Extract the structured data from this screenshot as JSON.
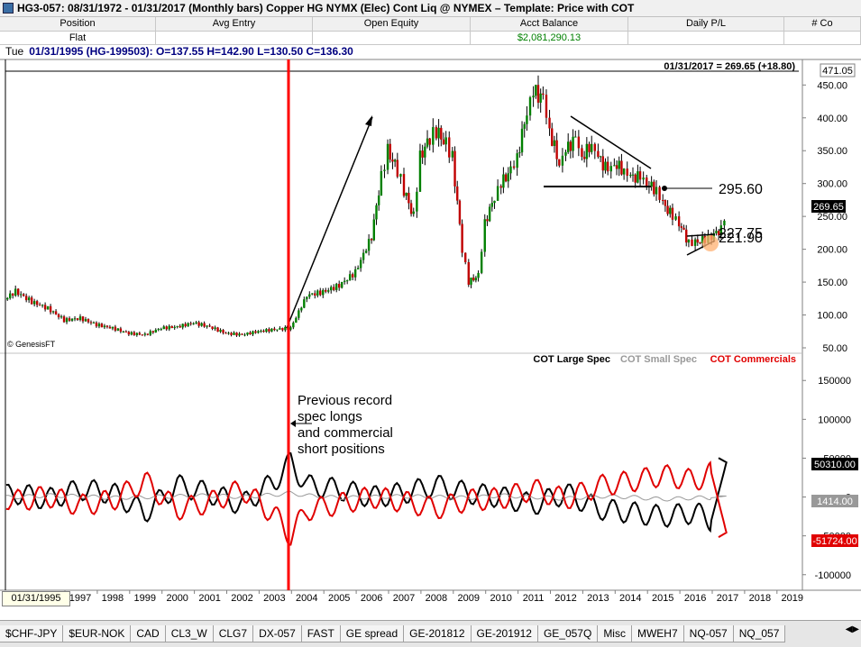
{
  "window": {
    "title": "HG3-057:  08/31/1972 - 01/31/2017  (Monthly bars)   Copper HG NYMX (Elec) Cont Liq @ NYMEX  –  Template: Price with COT"
  },
  "position_table": {
    "headers": [
      "Position",
      "Avg Entry",
      "Open Equity",
      "Acct Balance",
      "Daily P/L",
      "# Co"
    ],
    "row": [
      "Flat",
      "",
      "",
      "$2,081,290.13",
      "",
      ""
    ]
  },
  "quote_line": {
    "day": "Tue",
    "text": "01/31/1995 (HG-199503):  O=137.55  H=142.90  L=130.50  C=136.30"
  },
  "price_panel": {
    "header_text": "01/31/2017 = 269.65 (+18.80)",
    "top_box": "471.05",
    "last_price_box": "269.65",
    "watermark": "© GenesisFT",
    "annotations": {
      "level_1": "295.60",
      "level_2": "227.75",
      "level_3": "221.90"
    }
  },
  "cot_panel": {
    "legend": [
      {
        "name": "COT Large Spec",
        "color": "#000000"
      },
      {
        "name": "COT Small Spec",
        "color": "#999999"
      },
      {
        "name": "COT Commercials",
        "color": "#e00000"
      }
    ],
    "annotation": "Previous record spec longs and commercial short positions",
    "last_values": {
      "large": "50310.00",
      "small": "1414.00",
      "commercials": "-51724.00"
    }
  },
  "cursor_date": "01/31/1995",
  "tabs": [
    "$CHF-JPY",
    "$EUR-NOK",
    "CAD",
    "CL3_W",
    "CLG7",
    "DX-057",
    "FAST",
    "GE spread",
    "GE-201812",
    "GE-201912",
    "GE_057Q",
    "Misc",
    "MWEH7",
    "NQ-057",
    "NQ_057"
  ],
  "colors": {
    "price_bars": "#000000",
    "up_bar": "#008000",
    "down_bar": "#c00000",
    "cursor_line": "#ff0000",
    "highlight_circle": "#ffb070"
  },
  "chart_data": [
    {
      "type": "bar",
      "title": "",
      "bar_period": "monthly",
      "xlabel": "",
      "ylabel": "",
      "x_ticks": [
        "1997",
        "1998",
        "1999",
        "2000",
        "2001",
        "2002",
        "2003",
        "2004",
        "2005",
        "2006",
        "2007",
        "2008",
        "2009",
        "2010",
        "2011",
        "2012",
        "2013",
        "2014",
        "2015",
        "2016",
        "2017",
        "2018",
        "2019"
      ],
      "y_ticks": [
        "450.00",
        "400.00",
        "350.00",
        "300.00",
        "250.00",
        "200.00",
        "150.00",
        "100.00",
        "50.00"
      ],
      "ylim": [
        50,
        471
      ],
      "series": [
        {
          "name": "",
          "x": [
            1992.0,
            1992.5,
            1993.0,
            1993.5,
            1994.0,
            1994.5,
            1995.0,
            1995.5,
            1996.0,
            1996.5,
            1997.0,
            1997.5,
            1998.0,
            1998.5,
            1999.0,
            1999.5,
            2000.0,
            2000.5,
            2001.0,
            2001.5,
            2002.0,
            2002.5,
            2003.0,
            2003.5,
            2004.0,
            2004.5,
            2005.0,
            2005.5,
            2006.0,
            2006.3,
            2006.5,
            2006.8,
            2007.0,
            2007.3,
            2007.5,
            2007.8,
            2008.0,
            2008.3,
            2008.5,
            2008.8,
            2009.0,
            2009.3,
            2009.5,
            2009.8,
            2010.0,
            2010.3,
            2010.5,
            2010.8,
            2011.0,
            2011.3,
            2011.5,
            2011.8,
            2012.0,
            2012.3,
            2012.5,
            2012.8,
            2013.0,
            2013.3,
            2013.5,
            2013.8,
            2014.0,
            2014.3,
            2014.5,
            2014.8,
            2015.0,
            2015.3,
            2015.5,
            2015.8,
            2016.0,
            2016.3,
            2016.5,
            2016.8,
            2017.0
          ],
          "close": [
            135,
            128,
            120,
            105,
            110,
            118,
            136,
            120,
            110,
            92,
            95,
            85,
            80,
            72,
            70,
            80,
            82,
            88,
            82,
            72,
            70,
            75,
            78,
            80,
            130,
            135,
            145,
            165,
            220,
            310,
            350,
            320,
            290,
            250,
            340,
            370,
            380,
            360,
            340,
            200,
            150,
            160,
            240,
            280,
            300,
            320,
            340,
            410,
            440,
            430,
            380,
            330,
            350,
            370,
            340,
            360,
            340,
            320,
            330,
            320,
            310,
            310,
            300,
            290,
            270,
            250,
            240,
            210,
            210,
            215,
            220,
            230,
            269.65
          ]
        }
      ]
    },
    {
      "type": "line",
      "title": "",
      "y_ticks": [
        "150000",
        "100000",
        "50000",
        "0",
        "-50000",
        "-100000"
      ],
      "ylim": [
        -120000,
        170000
      ],
      "x": [
        1992,
        1993,
        1994,
        1995,
        1996,
        1997,
        1998,
        1999,
        2000,
        2001,
        2002,
        2003,
        2003.5,
        2004,
        2005,
        2006,
        2007,
        2008,
        2009,
        2010,
        2011,
        2012,
        2013,
        2014,
        2015,
        2016,
        2016.5,
        2017
      ],
      "series": [
        {
          "name": "COT Large Spec",
          "values": [
            0,
            5000,
            -5000,
            5000,
            -3000,
            10000,
            5000,
            -20000,
            15000,
            5000,
            -10000,
            20000,
            45000,
            15000,
            10000,
            0,
            5000,
            15000,
            5000,
            0,
            -10000,
            5000,
            -15000,
            -20000,
            -25000,
            -20000,
            -30000,
            50310
          ]
        },
        {
          "name": "COT Small Spec",
          "values": [
            0,
            1000,
            -1000,
            0,
            2000,
            1000,
            -1000,
            0,
            1000,
            2000,
            0,
            3000,
            5000,
            2000,
            -1000,
            0,
            1000,
            0,
            -1000,
            2000,
            0,
            -2000,
            1000,
            0,
            -3000,
            -1000,
            -1000,
            1414
          ]
        },
        {
          "name": "COT Commercials",
          "values": [
            0,
            -6000,
            6000,
            -5000,
            1000,
            -11000,
            -4000,
            20000,
            -16000,
            -7000,
            10000,
            -23000,
            -50000,
            -17000,
            -9000,
            0,
            -6000,
            -15000,
            -4000,
            -2000,
            10000,
            -3000,
            14000,
            20000,
            28000,
            21000,
            31000,
            -51724
          ]
        }
      ]
    }
  ]
}
